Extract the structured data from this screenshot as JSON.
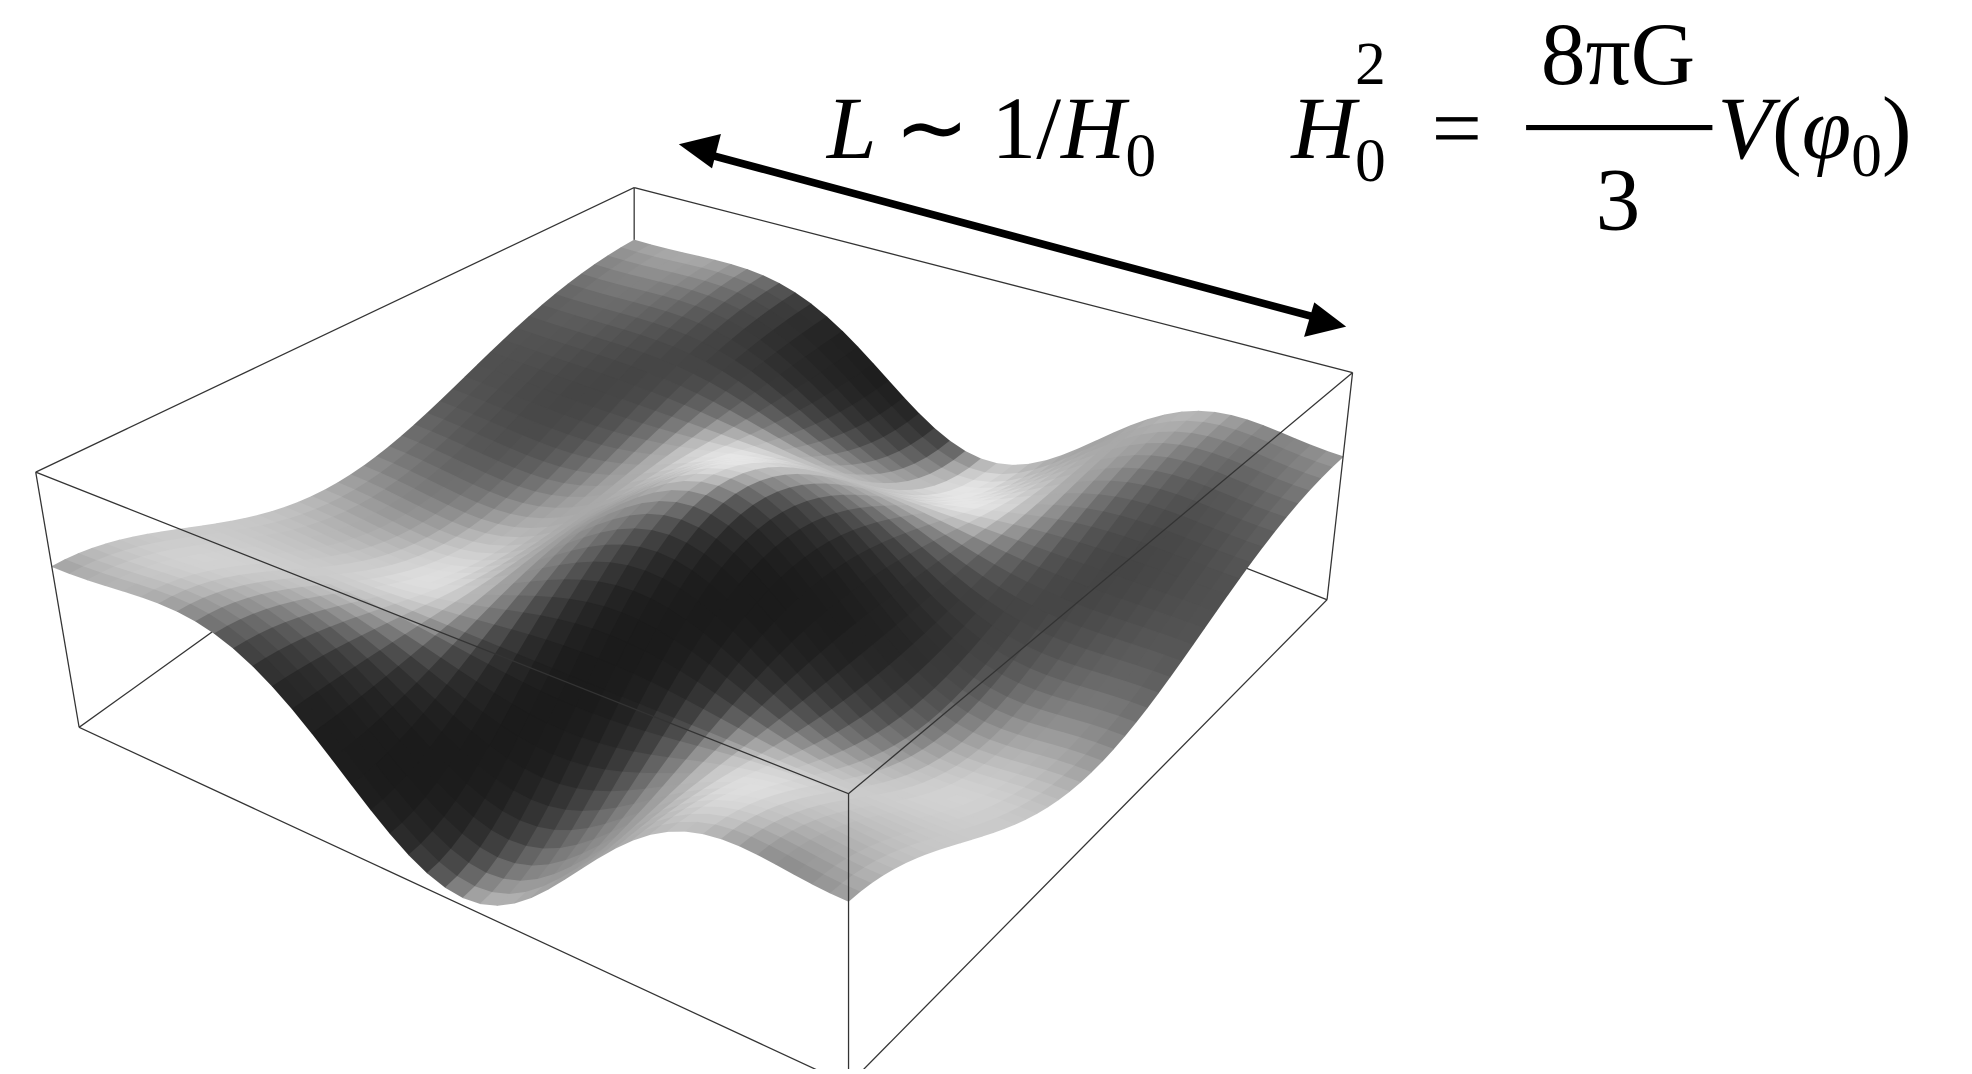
{
  "arrow_label": {
    "main": "L",
    "sim": "∼ 1/",
    "h": "H",
    "h_sub": "0"
  },
  "equation": {
    "lhs": "H",
    "lhs_sub": "0",
    "lhs_sup": "2",
    "equals": "=",
    "numerator": "8πG",
    "denominator": "3",
    "rhs": "V",
    "open": "(",
    "phi": "φ",
    "phi_sub": "0",
    "close": ")"
  }
}
